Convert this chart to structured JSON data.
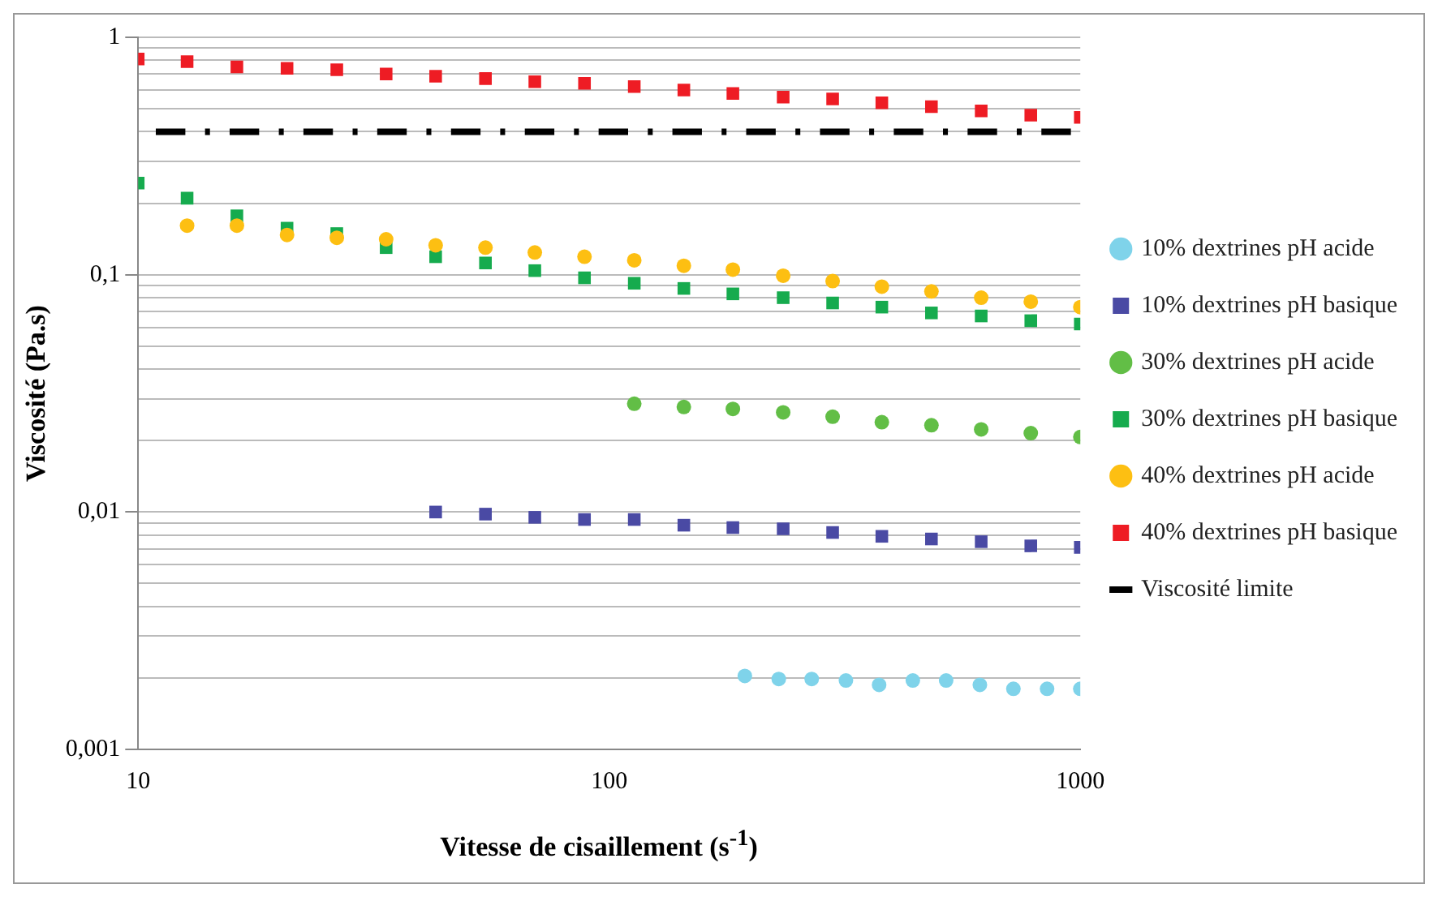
{
  "chart_data": {
    "type": "scatter",
    "xlabel": "Vitesse de cisaillement (s$^{-1}$)",
    "ylabel": "Viscosité (Pa.s)",
    "log": "xy",
    "grid": "y",
    "legend": "right",
    "xlim": [
      10,
      1000
    ],
    "xticks": [
      10,
      100,
      1000
    ],
    "ylim": [
      0.001,
      1
    ],
    "yticks": [
      {
        "value": 0.001,
        "label": "0,001"
      },
      {
        "value": 0.002,
        "label": null
      },
      {
        "value": 0.003,
        "label": null
      },
      {
        "value": 0.004,
        "label": null
      },
      {
        "value": 0.005,
        "label": null
      },
      {
        "value": 0.006,
        "label": null
      },
      {
        "value": 0.007,
        "label": null
      },
      {
        "value": 0.008,
        "label": null
      },
      {
        "value": 0.009,
        "label": null
      },
      {
        "value": 0.01,
        "label": "0,01"
      },
      {
        "value": 0.02,
        "label": null
      },
      {
        "value": 0.03,
        "label": null
      },
      {
        "value": 0.04,
        "label": null
      },
      {
        "value": 0.05,
        "label": null
      },
      {
        "value": 0.06,
        "label": null
      },
      {
        "value": 0.07,
        "label": null
      },
      {
        "value": 0.08,
        "label": null
      },
      {
        "value": 0.09,
        "label": null
      },
      {
        "value": 0.1,
        "label": "0,1"
      },
      {
        "value": 0.2,
        "label": null
      },
      {
        "value": 0.3,
        "label": null
      },
      {
        "value": 0.4,
        "label": null
      },
      {
        "value": 0.5,
        "label": null
      },
      {
        "value": 0.6,
        "label": null
      },
      {
        "value": 0.7,
        "label": null
      },
      {
        "value": 0.8,
        "label": null
      },
      {
        "value": 0.9,
        "label": null
      },
      {
        "value": 1,
        "label": "1"
      }
    ],
    "series": [
      {
        "name": "10% dextrines pH acide",
        "color": "#7fd3ea",
        "marker": "circle",
        "x": [
          194,
          229,
          269,
          318,
          374,
          441,
          519,
          612,
          721,
          850,
          1000
        ],
        "values": [
          0.00204,
          0.00198,
          0.00198,
          0.00195,
          0.00187,
          0.00195,
          0.00195,
          0.00187,
          0.0018,
          0.0018,
          0.0018
        ]
      },
      {
        "name": "10% dextrines pH basique",
        "color": "#4a4aa4",
        "marker": "square",
        "x": [
          42.8,
          54.6,
          69.5,
          88.6,
          113,
          144,
          183,
          234,
          298,
          379,
          483,
          616,
          785,
          1000
        ],
        "values": [
          0.01,
          0.0098,
          0.0095,
          0.0093,
          0.0093,
          0.0088,
          0.0086,
          0.0085,
          0.0082,
          0.0079,
          0.0077,
          0.0075,
          0.0072,
          0.0071
        ]
      },
      {
        "name": "30% dextrines pH acide",
        "color": "#62be46",
        "marker": "circle",
        "x": [
          113,
          144,
          183,
          234,
          298,
          379,
          483,
          616,
          785,
          1000
        ],
        "values": [
          0.0286,
          0.0277,
          0.0272,
          0.0263,
          0.0252,
          0.0239,
          0.0232,
          0.0223,
          0.0215,
          0.0207
        ]
      },
      {
        "name": "30% dextrines pH basique",
        "color": "#16ab4e",
        "marker": "square",
        "x": [
          10,
          12.7,
          16.2,
          20.7,
          26.4,
          33.6,
          42.8,
          54.6,
          69.5,
          88.6,
          113,
          144,
          183,
          234,
          298,
          379,
          483,
          616,
          785,
          1000
        ],
        "values": [
          0.243,
          0.21,
          0.177,
          0.157,
          0.149,
          0.13,
          0.119,
          0.112,
          0.104,
          0.097,
          0.092,
          0.0875,
          0.083,
          0.08,
          0.076,
          0.073,
          0.069,
          0.067,
          0.064,
          0.062
        ]
      },
      {
        "name": "40% dextrines pH acide",
        "color": "#fdbf12",
        "marker": "circle",
        "x": [
          12.7,
          16.2,
          20.7,
          26.4,
          33.6,
          42.8,
          54.6,
          69.5,
          88.6,
          113,
          144,
          183,
          234,
          298,
          379,
          483,
          616,
          785,
          1000
        ],
        "values": [
          0.161,
          0.161,
          0.147,
          0.143,
          0.141,
          0.133,
          0.13,
          0.124,
          0.119,
          0.115,
          0.109,
          0.105,
          0.099,
          0.094,
          0.089,
          0.085,
          0.08,
          0.077,
          0.073
        ]
      },
      {
        "name": "40% dextrines pH basique",
        "color": "#ee1c24",
        "marker": "square",
        "x": [
          10,
          12.7,
          16.2,
          20.7,
          26.4,
          33.6,
          42.8,
          54.6,
          69.5,
          88.6,
          113,
          144,
          183,
          234,
          298,
          379,
          483,
          616,
          785,
          1000
        ],
        "values": [
          0.81,
          0.79,
          0.75,
          0.74,
          0.73,
          0.7,
          0.685,
          0.67,
          0.65,
          0.64,
          0.62,
          0.6,
          0.58,
          0.56,
          0.55,
          0.53,
          0.51,
          0.49,
          0.47,
          0.46
        ]
      },
      {
        "name": "Viscosité limite",
        "color": "#000000",
        "type": "line",
        "marker": "none",
        "line_style": "dashed",
        "x": [
          10.9,
          955
        ],
        "values": [
          0.4,
          0.4
        ]
      }
    ]
  }
}
